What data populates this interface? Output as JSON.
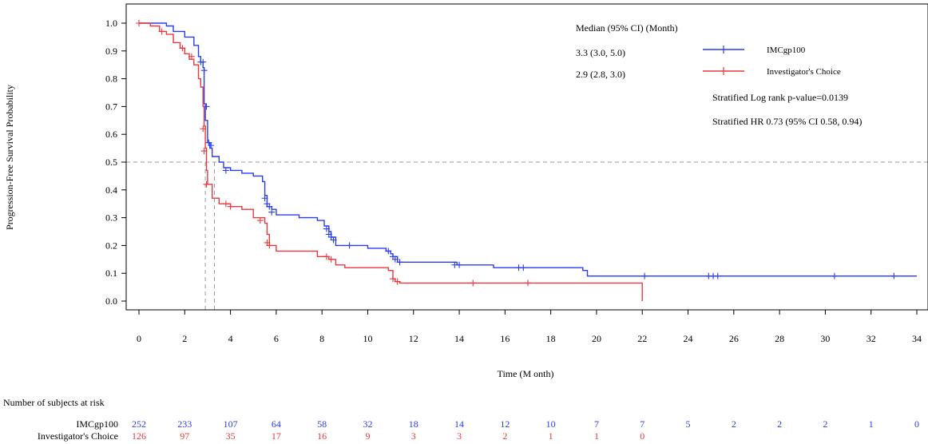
{
  "chart_data": {
    "type": "line",
    "title": "",
    "xlabel": "Time (M onth)",
    "ylabel": "Progression-Free Survival Probability",
    "xlim": [
      0,
      34
    ],
    "ylim": [
      0,
      1
    ],
    "x_ticks": [
      "0",
      "2",
      "4",
      "6",
      "8",
      "10",
      "12",
      "14",
      "16",
      "18",
      "20",
      "22",
      "24",
      "26",
      "28",
      "30",
      "32",
      "34"
    ],
    "y_ticks": [
      "0.0",
      "0.1",
      "0.2",
      "0.3",
      "0.4",
      "0.5",
      "0.6",
      "0.7",
      "0.8",
      "0.9",
      "1.0"
    ],
    "reference_line_y": 0.5,
    "median_lines_x": [
      2.9,
      3.3
    ],
    "legend_header": "Median (95% CI) (Month)",
    "series": [
      {
        "name": "IMCgp100",
        "color": "#2a3cf0",
        "median_text": "3.3 (3.0, 5.0)",
        "points": [
          [
            0,
            1.0
          ],
          [
            0.8,
            1.0
          ],
          [
            1.2,
            0.99
          ],
          [
            1.5,
            0.97
          ],
          [
            2.0,
            0.95
          ],
          [
            2.4,
            0.92
          ],
          [
            2.6,
            0.88
          ],
          [
            2.7,
            0.86
          ],
          [
            2.8,
            0.84
          ],
          [
            2.85,
            0.71
          ],
          [
            2.9,
            0.65
          ],
          [
            3.0,
            0.57
          ],
          [
            3.1,
            0.55
          ],
          [
            3.2,
            0.52
          ],
          [
            3.5,
            0.5
          ],
          [
            3.7,
            0.48
          ],
          [
            4.0,
            0.47
          ],
          [
            4.5,
            0.46
          ],
          [
            5.0,
            0.45
          ],
          [
            5.4,
            0.43
          ],
          [
            5.5,
            0.38
          ],
          [
            5.6,
            0.34
          ],
          [
            5.8,
            0.33
          ],
          [
            6.0,
            0.31
          ],
          [
            7.0,
            0.3
          ],
          [
            7.8,
            0.29
          ],
          [
            8.1,
            0.27
          ],
          [
            8.3,
            0.25
          ],
          [
            8.4,
            0.23
          ],
          [
            8.6,
            0.2
          ],
          [
            9.4,
            0.2
          ],
          [
            10.0,
            0.19
          ],
          [
            10.8,
            0.18
          ],
          [
            11.0,
            0.17
          ],
          [
            11.1,
            0.16
          ],
          [
            11.3,
            0.14
          ],
          [
            13.6,
            0.14
          ],
          [
            13.9,
            0.13
          ],
          [
            15.5,
            0.12
          ],
          [
            19.4,
            0.11
          ],
          [
            19.6,
            0.09
          ],
          [
            34.0,
            0.09
          ]
        ],
        "censors": [
          [
            2.7,
            0.86
          ],
          [
            2.8,
            0.86
          ],
          [
            2.85,
            0.83
          ],
          [
            2.95,
            0.7
          ],
          [
            3.05,
            0.57
          ],
          [
            3.15,
            0.56
          ],
          [
            3.8,
            0.47
          ],
          [
            5.5,
            0.37
          ],
          [
            5.6,
            0.35
          ],
          [
            5.7,
            0.34
          ],
          [
            5.8,
            0.32
          ],
          [
            8.2,
            0.26
          ],
          [
            8.3,
            0.24
          ],
          [
            8.4,
            0.23
          ],
          [
            8.5,
            0.22
          ],
          [
            9.2,
            0.2
          ],
          [
            10.9,
            0.18
          ],
          [
            11.1,
            0.16
          ],
          [
            11.2,
            0.15
          ],
          [
            11.4,
            0.14
          ],
          [
            13.8,
            0.13
          ],
          [
            14.0,
            0.13
          ],
          [
            16.6,
            0.12
          ],
          [
            16.8,
            0.12
          ],
          [
            22.1,
            0.09
          ],
          [
            24.9,
            0.09
          ],
          [
            25.1,
            0.09
          ],
          [
            25.3,
            0.09
          ],
          [
            30.4,
            0.09
          ],
          [
            33.0,
            0.09
          ]
        ]
      },
      {
        "name": "Investigator's Choice",
        "color": "#e8383f",
        "median_text": "2.9 (2.8, 3.0)",
        "points": [
          [
            0,
            1.0
          ],
          [
            0.5,
            0.99
          ],
          [
            0.9,
            0.97
          ],
          [
            1.2,
            0.96
          ],
          [
            1.5,
            0.93
          ],
          [
            1.8,
            0.91
          ],
          [
            2.0,
            0.89
          ],
          [
            2.2,
            0.87
          ],
          [
            2.4,
            0.85
          ],
          [
            2.6,
            0.8
          ],
          [
            2.7,
            0.77
          ],
          [
            2.8,
            0.7
          ],
          [
            2.85,
            0.63
          ],
          [
            2.9,
            0.55
          ],
          [
            2.95,
            0.47
          ],
          [
            3.0,
            0.42
          ],
          [
            3.2,
            0.37
          ],
          [
            3.5,
            0.35
          ],
          [
            4.0,
            0.34
          ],
          [
            4.5,
            0.33
          ],
          [
            5.0,
            0.3
          ],
          [
            5.5,
            0.28
          ],
          [
            5.6,
            0.24
          ],
          [
            5.7,
            0.2
          ],
          [
            6.0,
            0.18
          ],
          [
            7.8,
            0.16
          ],
          [
            8.3,
            0.15
          ],
          [
            8.6,
            0.13
          ],
          [
            9.0,
            0.12
          ],
          [
            10.9,
            0.11
          ],
          [
            11.1,
            0.08
          ],
          [
            11.2,
            0.07
          ],
          [
            11.4,
            0.065
          ],
          [
            22.0,
            0.065
          ],
          [
            22.0,
            0.0
          ]
        ],
        "censors": [
          [
            0,
            1.0
          ],
          [
            1.0,
            0.97
          ],
          [
            1.9,
            0.91
          ],
          [
            2.3,
            0.88
          ],
          [
            2.8,
            0.62
          ],
          [
            2.85,
            0.54
          ],
          [
            2.95,
            0.42
          ],
          [
            3.8,
            0.35
          ],
          [
            4.0,
            0.34
          ],
          [
            5.3,
            0.29
          ],
          [
            5.6,
            0.21
          ],
          [
            5.7,
            0.2
          ],
          [
            8.2,
            0.16
          ],
          [
            8.4,
            0.15
          ],
          [
            11.1,
            0.08
          ],
          [
            11.3,
            0.07
          ],
          [
            14.6,
            0.065
          ],
          [
            17.0,
            0.065
          ]
        ]
      }
    ],
    "stats": [
      "Stratified Log rank p-value=0.0139",
      "Stratified HR 0.73 (95% CI 0.58, 0.94)"
    ]
  },
  "risk_table": {
    "title": "Number of subjects at risk",
    "rows": [
      {
        "label": "IMCgp100",
        "color": "#2a3cf0",
        "values": [
          "252",
          "233",
          "107",
          "64",
          "58",
          "32",
          "18",
          "14",
          "12",
          "10",
          "7",
          "7",
          "5",
          "2",
          "2",
          "2",
          "1",
          "0"
        ]
      },
      {
        "label": "Investigator's Choice",
        "color": "#e8383f",
        "values": [
          "126",
          "97",
          "35",
          "17",
          "16",
          "9",
          "3",
          "3",
          "2",
          "1",
          "1",
          "0"
        ]
      }
    ]
  }
}
